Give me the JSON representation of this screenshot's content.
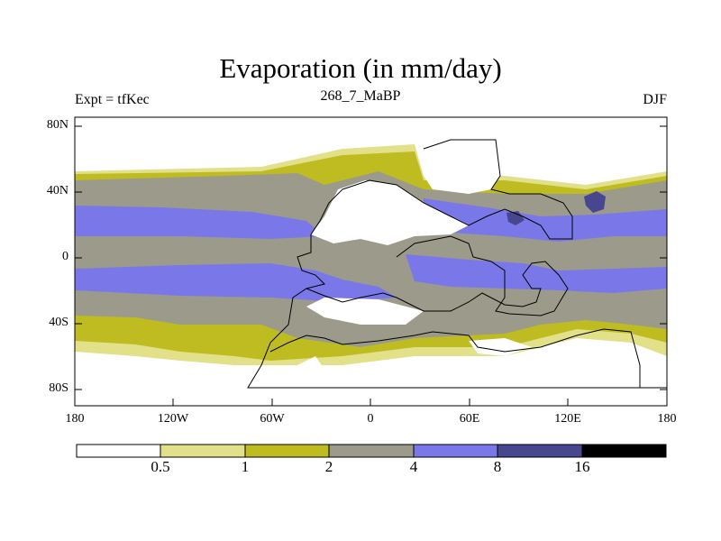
{
  "title": "Evaporation (in mm/day)",
  "left_label": "Expt = tfKec",
  "center_label": "268_7_MaBP",
  "right_label": "DJF",
  "y_ticks": [
    "80N",
    "40N",
    "0",
    "40S",
    "80S"
  ],
  "x_ticks": [
    "180",
    "120W",
    "60W",
    "0",
    "60E",
    "120E",
    "180"
  ],
  "colorbar": {
    "colors": [
      "#ffffff",
      "#e3e08a",
      "#bfbc22",
      "#9c9a8a",
      "#7a78e8",
      "#47468f",
      "#000000"
    ],
    "labels": [
      "0.5",
      "1",
      "2",
      "4",
      "8",
      "16"
    ]
  }
}
